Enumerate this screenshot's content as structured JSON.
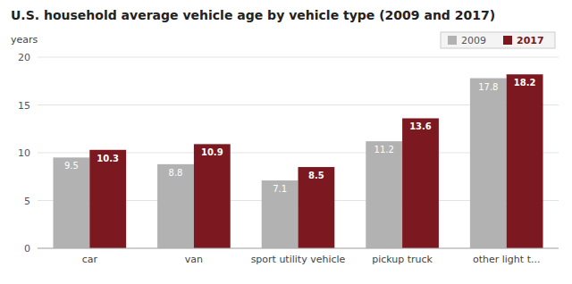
{
  "chart_data": {
    "type": "bar",
    "title": "U.S. household average vehicle age by vehicle type (2009 and 2017)",
    "ylabel": "years",
    "categories": [
      "car",
      "van",
      "sport utility vehicle",
      "pickup truck",
      "other light t..."
    ],
    "series": [
      {
        "name": "2009",
        "color": "#b2b2b2",
        "values": [
          9.5,
          8.8,
          7.1,
          11.2,
          17.8
        ]
      },
      {
        "name": "2017",
        "color": "#7b1820",
        "values": [
          10.3,
          10.9,
          8.5,
          13.6,
          18.2
        ]
      }
    ],
    "ylim": [
      0,
      20
    ],
    "yticks": [
      0,
      5,
      10,
      15,
      20
    ],
    "grid": true,
    "data_labels": true,
    "legend": "upper right"
  }
}
